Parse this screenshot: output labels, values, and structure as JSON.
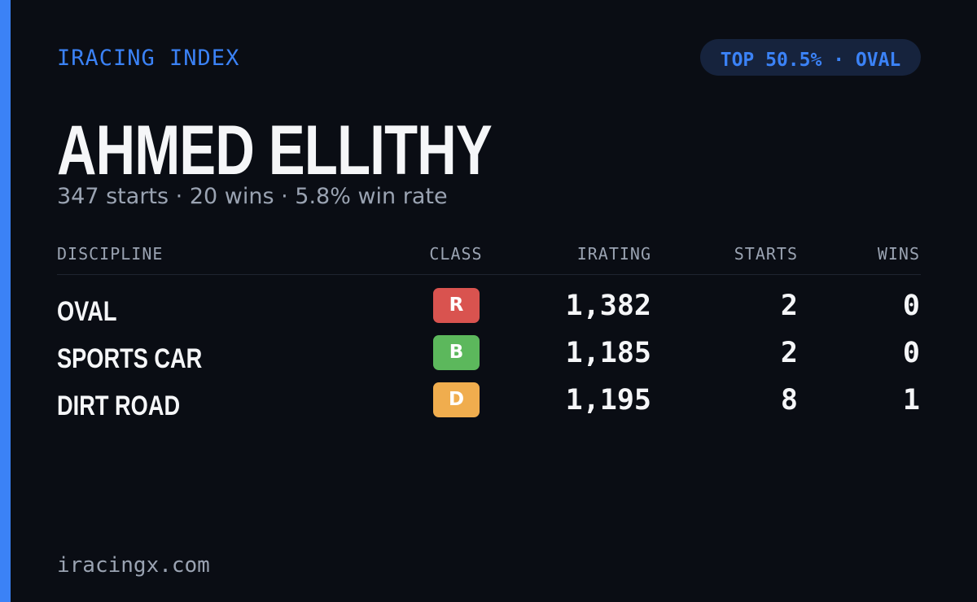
{
  "brand": "IRACING INDEX",
  "badge": "TOP 50.5% · OVAL",
  "name": "AHMED ELLITHY",
  "stats": "347 starts · 20 wins · 5.8% win rate",
  "table": {
    "headers": [
      "DISCIPLINE",
      "CLASS",
      "IRATING",
      "STARTS",
      "WINS"
    ],
    "rows": [
      {
        "discipline": "OVAL",
        "class": "R",
        "class_color": "#d9534f",
        "irating": "1,382",
        "starts": "2",
        "wins": "0"
      },
      {
        "discipline": "SPORTS CAR",
        "class": "B",
        "class_color": "#5cb85c",
        "irating": "1,185",
        "starts": "2",
        "wins": "0"
      },
      {
        "discipline": "DIRT ROAD",
        "class": "D",
        "class_color": "#f0ad4e",
        "irating": "1,195",
        "starts": "8",
        "wins": "1"
      }
    ]
  },
  "footer": "iracingx.com"
}
